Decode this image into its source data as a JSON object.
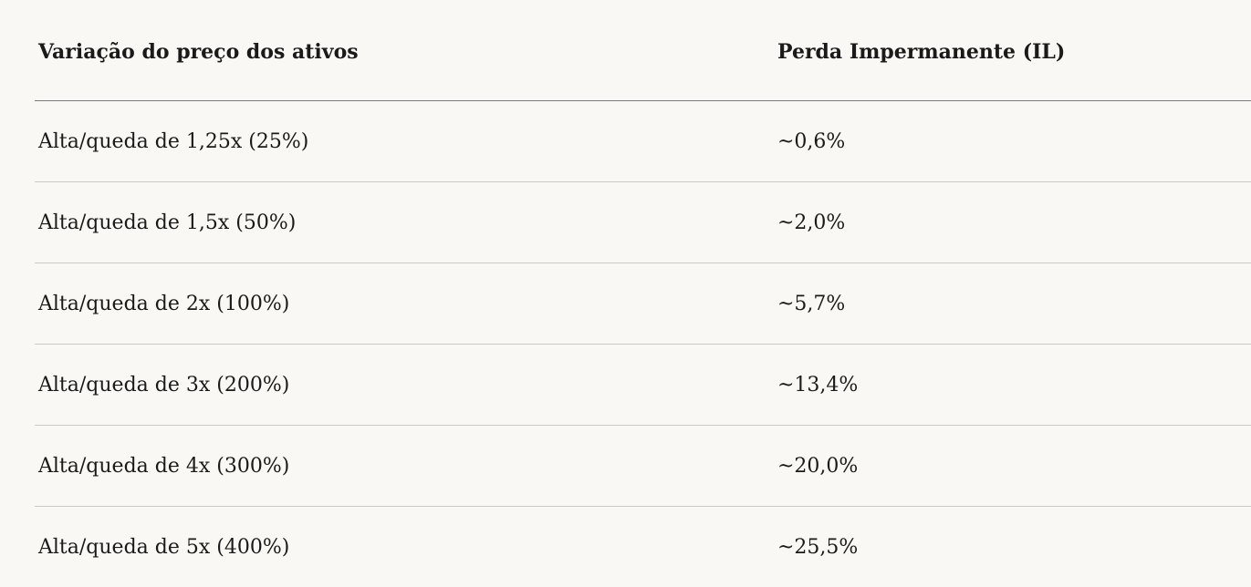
{
  "table": {
    "headers": [
      "Variação do preço dos ativos",
      "Perda Impermanente (IL)"
    ],
    "rows": [
      [
        "Alta/queda de 1,25x (25%)",
        "~0,6%"
      ],
      [
        "Alta/queda de 1,5x (50%)",
        "~2,0%"
      ],
      [
        "Alta/queda de 2x (100%)",
        "~5,7%"
      ],
      [
        "Alta/queda de 3x (200%)",
        "~13,4%"
      ],
      [
        "Alta/queda de 4x (300%)",
        "~20,0%"
      ],
      [
        "Alta/queda de 5x (400%)",
        "~25,5%"
      ]
    ]
  }
}
